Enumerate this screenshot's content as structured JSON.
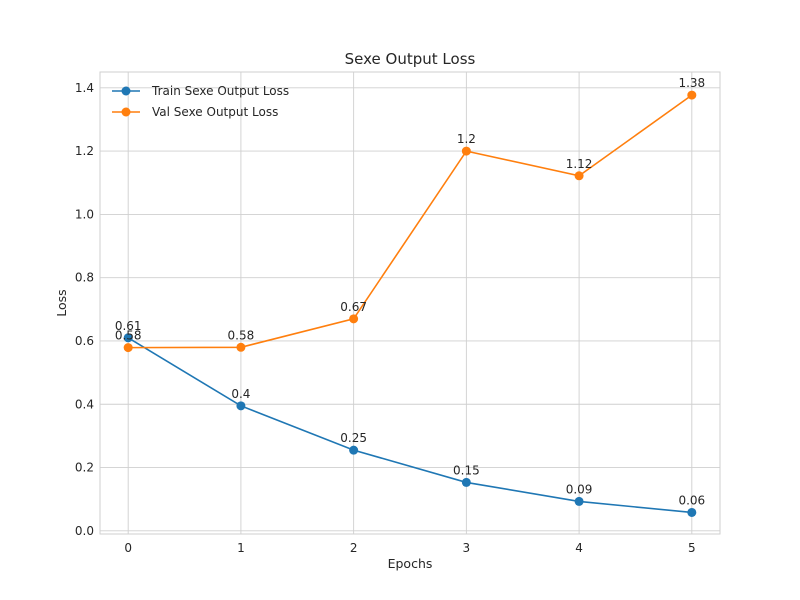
{
  "chart_data": {
    "type": "line",
    "title": "Sexe Output Loss",
    "xlabel": "Epochs",
    "ylabel": "Loss",
    "x": [
      0,
      1,
      2,
      3,
      4,
      5
    ],
    "x_tick_labels": [
      "0",
      "1",
      "2",
      "3",
      "4",
      "5"
    ],
    "y_ticks": [
      0.0,
      0.2,
      0.4,
      0.6,
      0.8,
      1.0,
      1.2,
      1.4
    ],
    "y_tick_labels": [
      "0.0",
      "0.2",
      "0.4",
      "0.6",
      "0.8",
      "1.0",
      "1.2",
      "1.4"
    ],
    "xlim": [
      -0.25,
      5.25
    ],
    "ylim": [
      -0.01,
      1.45
    ],
    "grid": true,
    "legend_position": "top-left",
    "series": [
      {
        "name": "Train Sexe Output Loss",
        "color": "#1f77b4",
        "values": [
          0.61,
          0.395,
          0.255,
          0.153,
          0.093,
          0.058
        ],
        "labels": [
          "0.61",
          "0.4",
          "0.25",
          "0.15",
          "0.09",
          "0.06"
        ]
      },
      {
        "name": "Val Sexe Output Loss",
        "color": "#ff7f0e",
        "values": [
          0.579,
          0.58,
          0.67,
          1.2,
          1.122,
          1.377
        ],
        "labels": [
          "0.58",
          "0.58",
          "0.67",
          "1.2",
          "1.12",
          "1.38"
        ]
      }
    ]
  }
}
